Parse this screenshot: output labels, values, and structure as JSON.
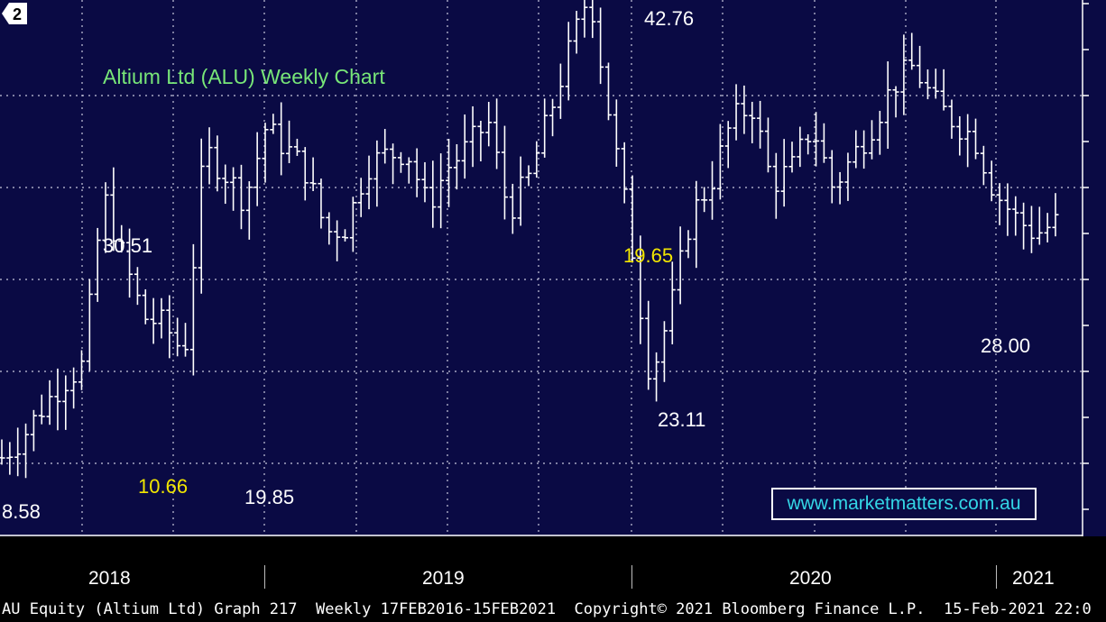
{
  "chart_data": {
    "type": "ohlc",
    "title": "Altium Ltd (ALU) Weekly Chart",
    "frequency": "Weekly",
    "x_years": [
      "2018",
      "2019",
      "2020",
      "2021"
    ],
    "annotations": [
      {
        "text": "8.58",
        "color": "white"
      },
      {
        "text": "30.51",
        "color": "white"
      },
      {
        "text": "10.66",
        "color": "yellow"
      },
      {
        "text": "19.85",
        "color": "white"
      },
      {
        "text": "42.76",
        "color": "white"
      },
      {
        "text": "19.65",
        "color": "yellow"
      },
      {
        "text": "23.11",
        "color": "white"
      },
      {
        "text": "28.00",
        "color": "white"
      }
    ],
    "series": [
      {
        "values_approx": [
          [
            0.0,
            15.6
          ],
          [
            0.05,
            16.7
          ],
          [
            0.1,
            18.3
          ],
          [
            0.15,
            19.7
          ],
          [
            0.2,
            20.6
          ],
          [
            0.25,
            29.8
          ],
          [
            0.3,
            26.3
          ],
          [
            0.35,
            23.2
          ],
          [
            0.4,
            22.8
          ],
          [
            0.45,
            21.2
          ],
          [
            0.5,
            32.3
          ],
          [
            0.55,
            31.0
          ],
          [
            0.6,
            29.5
          ],
          [
            0.65,
            33.4
          ],
          [
            0.7,
            32.4
          ],
          [
            0.75,
            31.1
          ],
          [
            0.8,
            27.8
          ],
          [
            0.85,
            28.1
          ],
          [
            0.9,
            31.4
          ],
          [
            0.95,
            32.0
          ],
          [
            1.0,
            32.2
          ],
          [
            1.05,
            29.2
          ],
          [
            1.1,
            31.3
          ],
          [
            1.15,
            32.4
          ],
          [
            1.2,
            33.8
          ],
          [
            1.25,
            28.9
          ],
          [
            1.3,
            30.7
          ],
          [
            1.35,
            34.1
          ],
          [
            1.4,
            37.6
          ],
          [
            1.45,
            40.9
          ],
          [
            1.5,
            34.0
          ],
          [
            1.55,
            27.8
          ],
          [
            1.6,
            19.9
          ],
          [
            1.65,
            23.6
          ],
          [
            1.7,
            28.7
          ],
          [
            1.75,
            30.5
          ],
          [
            1.8,
            33.8
          ],
          [
            1.85,
            34.7
          ],
          [
            1.9,
            30.4
          ],
          [
            1.95,
            31.3
          ],
          [
            2.0,
            33.6
          ],
          [
            2.05,
            30.2
          ],
          [
            2.1,
            31.9
          ],
          [
            2.15,
            33.7
          ],
          [
            2.2,
            35.8
          ],
          [
            2.25,
            36.8
          ],
          [
            2.3,
            34.8
          ],
          [
            2.35,
            33.8
          ],
          [
            2.4,
            32.9
          ],
          [
            2.45,
            30.0
          ],
          [
            2.5,
            28.6
          ],
          [
            2.55,
            27.7
          ],
          [
            2.6,
            28.3
          ]
        ],
        "x_unit": "years since start of 2018",
        "y_unit": "A$"
      }
    ],
    "y_axis": {
      "side": "right",
      "tick_labels_visible": "truncated"
    },
    "grid": "dotted",
    "last_price_marker": "2"
  },
  "watermark": "www.marketmatters.com.au",
  "footer": "AU Equity (Altium Ltd) Graph 217  Weekly 17FEB2016-15FEB2021  Copyright© 2021 Bloomberg Finance L.P.  15-Feb-2021 22:0",
  "colors": {
    "background": "#0a0a44",
    "bars": "#ffffff",
    "title": "#78e678",
    "highlight": "#f2e600",
    "watermark_text": "#34d6e6"
  }
}
